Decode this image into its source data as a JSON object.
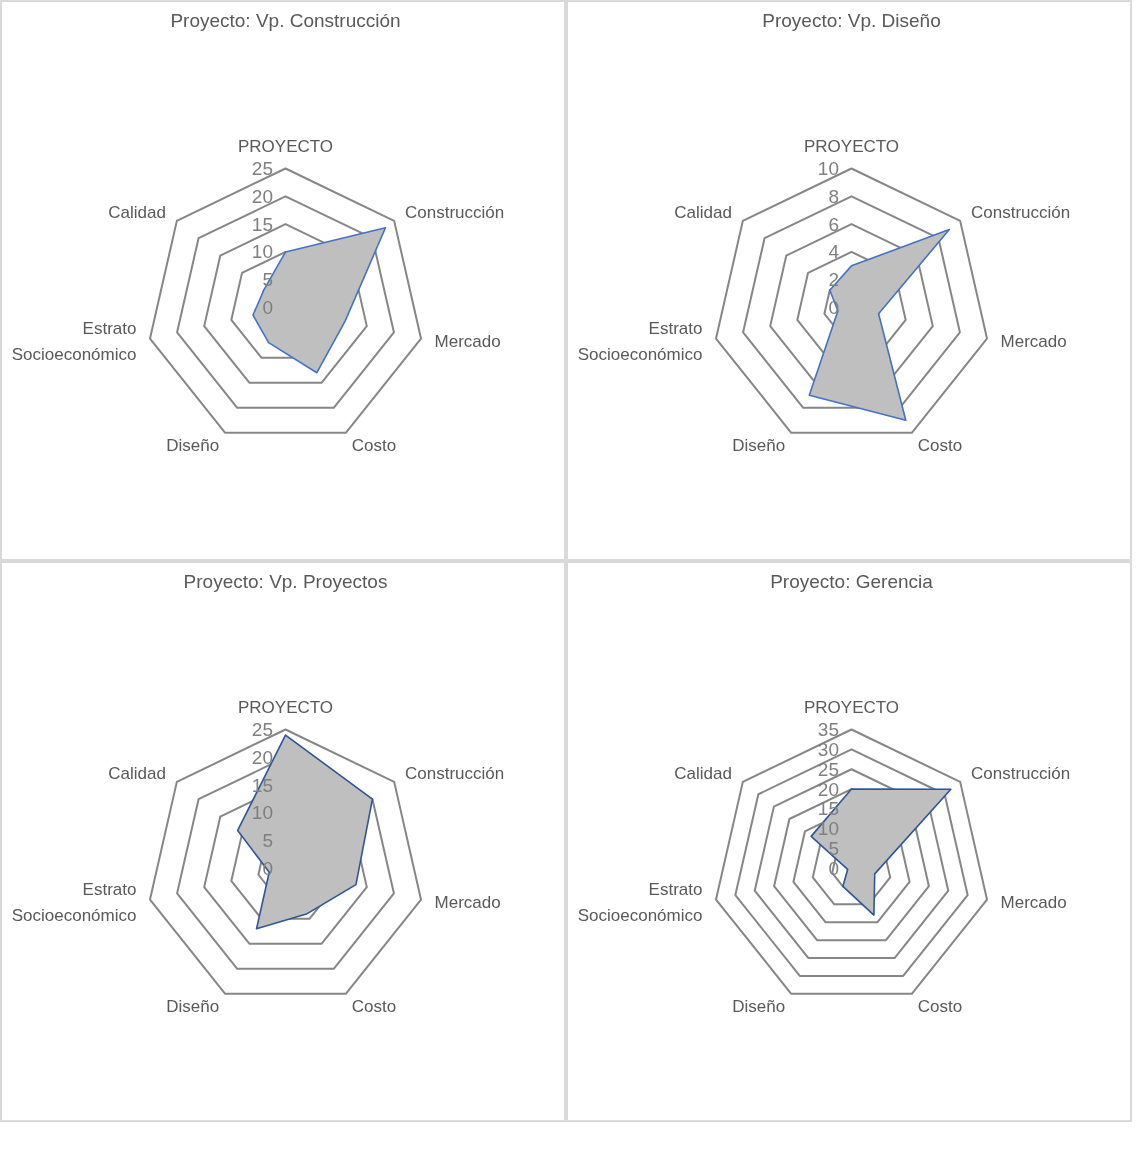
{
  "chart_data": [
    {
      "type": "radar",
      "title": "Proyecto: Vp. Construcción",
      "categories": [
        "PROYECTO",
        "Construcción",
        "Mercado",
        "Costo",
        "Diseño",
        "Estrato Socioeconómico",
        "Calidad"
      ],
      "ylim": [
        0,
        25
      ],
      "yticks": [
        0,
        5,
        10,
        15,
        20,
        25
      ],
      "grid": true,
      "series": [
        {
          "color": "#4472c4",
          "values": [
            10,
            23,
            11,
            13,
            7,
            6,
            5
          ]
        }
      ]
    },
    {
      "type": "radar",
      "title": "Proyecto: Vp. Diseño",
      "categories": [
        "PROYECTO",
        "Construcción",
        "Mercado",
        "Costo",
        "Diseño",
        "Estrato Socioeconómico",
        "Calidad"
      ],
      "ylim": [
        0,
        10
      ],
      "yticks": [
        0,
        2,
        4,
        6,
        8,
        10
      ],
      "grid": true,
      "series": [
        {
          "color": "#4472c4",
          "values": [
            3,
            9,
            2,
            9,
            7,
            1,
            2
          ]
        }
      ]
    },
    {
      "type": "radar",
      "title": "Proyecto: Vp. Proyectos",
      "categories": [
        "PROYECTO",
        "Construcción",
        "Mercado",
        "Costo",
        "Diseño",
        "Estrato Socioeconómico",
        "Calidad"
      ],
      "ylim": [
        0,
        25
      ],
      "yticks": [
        0,
        5,
        10,
        15,
        20,
        25
      ],
      "grid": true,
      "series": [
        {
          "color": "#2f5597",
          "values": [
            24,
            20,
            13,
            9,
            12,
            3,
            11
          ]
        }
      ]
    },
    {
      "type": "radar",
      "title": "Proyecto: Gerencia",
      "categories": [
        "PROYECTO",
        "Construcción",
        "Mercado",
        "Costo",
        "Diseño",
        "Estrato Socioeconómico",
        "Calidad"
      ],
      "ylim": [
        0,
        35
      ],
      "yticks": [
        0,
        5,
        10,
        15,
        20,
        25,
        30,
        35
      ],
      "grid": true,
      "series": [
        {
          "color": "#2f5597",
          "values": [
            20,
            32,
            6,
            13,
            5,
            1,
            13
          ]
        }
      ]
    }
  ]
}
